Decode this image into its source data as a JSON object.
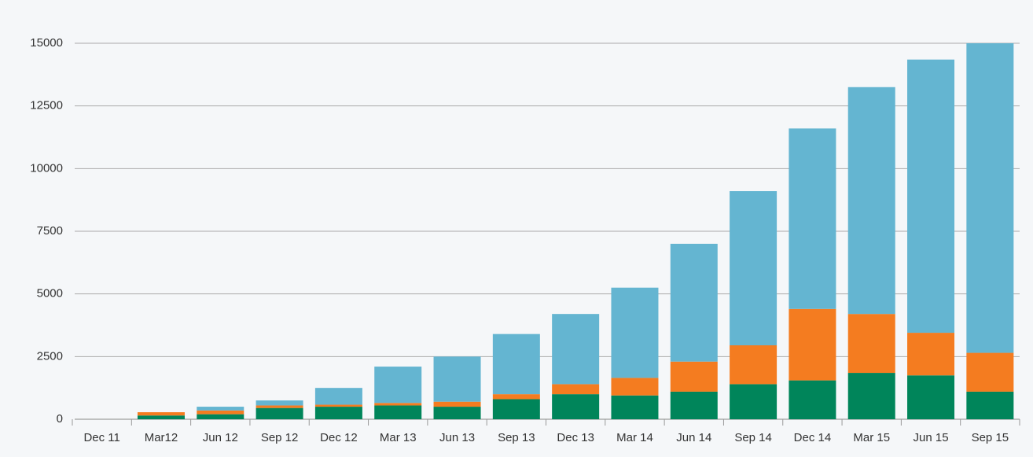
{
  "chart_data": {
    "type": "stacked_bar",
    "categories": [
      "Dec 11",
      "Mar12",
      "Jun 12",
      "Sep 12",
      "Dec 12",
      "Mar 13",
      "Jun 13",
      "Sep 13",
      "Dec 13",
      "Mar 14",
      "Jun 14",
      "Sep 14",
      "Dec 14",
      "Mar 15",
      "Jun 15",
      "Sep 15"
    ],
    "series": [
      {
        "color": "#00855a",
        "values": [
          0,
          150,
          200,
          450,
          500,
          550,
          500,
          800,
          1000,
          950,
          1100,
          1400,
          1550,
          1850,
          1750,
          1100
        ]
      },
      {
        "color": "#f47c20",
        "values": [
          0,
          130,
          150,
          100,
          80,
          100,
          200,
          200,
          400,
          700,
          1200,
          1550,
          2850,
          2350,
          1700,
          1550
        ]
      },
      {
        "color": "#64b5d1",
        "values": [
          0,
          0,
          150,
          200,
          670,
          1450,
          1800,
          2400,
          2800,
          3600,
          4700,
          6150,
          7200,
          9050,
          10900,
          12350
        ]
      }
    ],
    "ylim": [
      0,
      15000
    ],
    "yticks": [
      0,
      2500,
      5000,
      7500,
      10000,
      12500,
      15000
    ],
    "grid": true
  }
}
